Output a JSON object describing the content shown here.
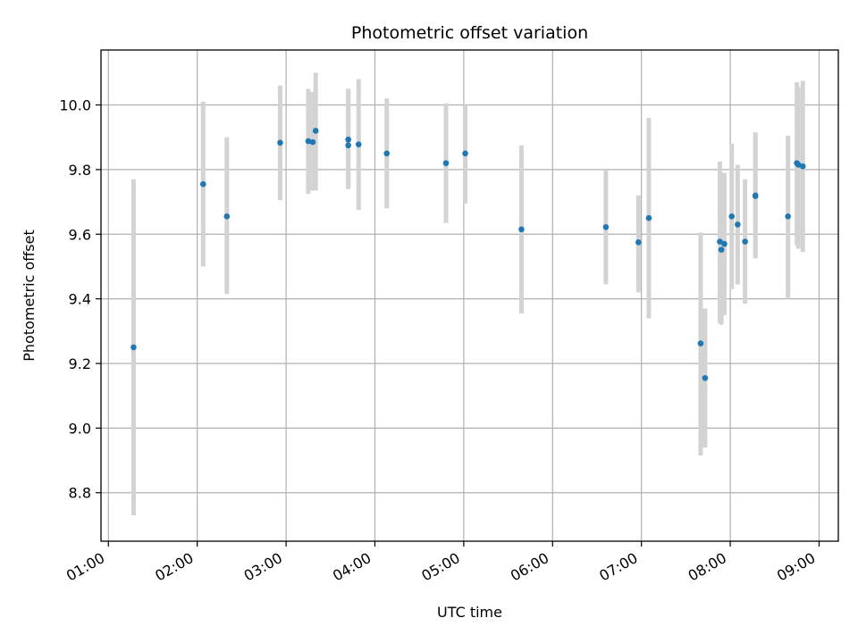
{
  "chart_data": {
    "type": "scatter",
    "title": "Photometric offset variation",
    "xlabel": "UTC time",
    "ylabel": "Photometric offset",
    "xlim": [
      "00:55",
      "09:13"
    ],
    "ylim": [
      8.65,
      10.17
    ],
    "x_ticks": [
      "01:00",
      "02:00",
      "03:00",
      "04:00",
      "05:00",
      "06:00",
      "07:00",
      "08:00",
      "09:00"
    ],
    "y_ticks": [
      "8.8",
      "9.0",
      "9.2",
      "9.4",
      "9.6",
      "9.8",
      "10.0"
    ],
    "grid": true,
    "point_color": "#1f77b4",
    "errorbar_color": "#d3d3d3",
    "points": [
      {
        "x": "01:17",
        "y": 9.25,
        "low": 8.73,
        "high": 9.77
      },
      {
        "x": "02:04",
        "y": 9.755,
        "low": 9.5,
        "high": 10.01
      },
      {
        "x": "02:20",
        "y": 9.655,
        "low": 9.415,
        "high": 9.9
      },
      {
        "x": "02:56",
        "y": 9.883,
        "low": 9.705,
        "high": 10.06
      },
      {
        "x": "03:15",
        "y": 9.888,
        "low": 9.725,
        "high": 10.05
      },
      {
        "x": "03:18",
        "y": 9.885,
        "low": 9.735,
        "high": 10.04
      },
      {
        "x": "03:20",
        "y": 9.92,
        "low": 9.735,
        "high": 10.1
      },
      {
        "x": "03:42",
        "y": 9.893,
        "low": 9.74,
        "high": 10.05
      },
      {
        "x": "03:42",
        "y": 9.875,
        "low": 9.74,
        "high": 10.05
      },
      {
        "x": "03:49",
        "y": 9.878,
        "low": 9.675,
        "high": 10.08
      },
      {
        "x": "04:08",
        "y": 9.85,
        "low": 9.68,
        "high": 10.02
      },
      {
        "x": "04:48",
        "y": 9.82,
        "low": 9.635,
        "high": 10.005
      },
      {
        "x": "05:01",
        "y": 9.85,
        "low": 9.695,
        "high": 10.0
      },
      {
        "x": "05:39",
        "y": 9.615,
        "low": 9.355,
        "high": 9.875
      },
      {
        "x": "06:36",
        "y": 9.622,
        "low": 9.445,
        "high": 9.8
      },
      {
        "x": "06:58",
        "y": 9.575,
        "low": 9.42,
        "high": 9.72
      },
      {
        "x": "07:05",
        "y": 9.65,
        "low": 9.34,
        "high": 9.96
      },
      {
        "x": "07:40",
        "y": 9.262,
        "low": 8.915,
        "high": 9.605
      },
      {
        "x": "07:43",
        "y": 9.155,
        "low": 8.94,
        "high": 9.37
      },
      {
        "x": "07:53",
        "y": 9.577,
        "low": 9.325,
        "high": 9.825
      },
      {
        "x": "07:54",
        "y": 9.552,
        "low": 9.32,
        "high": 9.79
      },
      {
        "x": "07:56",
        "y": 9.57,
        "low": 9.35,
        "high": 9.79
      },
      {
        "x": "08:01",
        "y": 9.655,
        "low": 9.43,
        "high": 9.88
      },
      {
        "x": "08:05",
        "y": 9.63,
        "low": 9.445,
        "high": 9.815
      },
      {
        "x": "08:10",
        "y": 9.577,
        "low": 9.385,
        "high": 9.77
      },
      {
        "x": "08:17",
        "y": 9.72,
        "low": 9.525,
        "high": 9.915
      },
      {
        "x": "08:17",
        "y": 9.718,
        "low": 9.53,
        "high": 9.905
      },
      {
        "x": "08:39",
        "y": 9.655,
        "low": 9.4,
        "high": 9.905
      },
      {
        "x": "08:45",
        "y": 9.82,
        "low": 9.565,
        "high": 10.07
      },
      {
        "x": "08:46",
        "y": 9.815,
        "low": 9.555,
        "high": 10.055
      },
      {
        "x": "08:49",
        "y": 9.81,
        "low": 9.545,
        "high": 10.075
      }
    ]
  }
}
